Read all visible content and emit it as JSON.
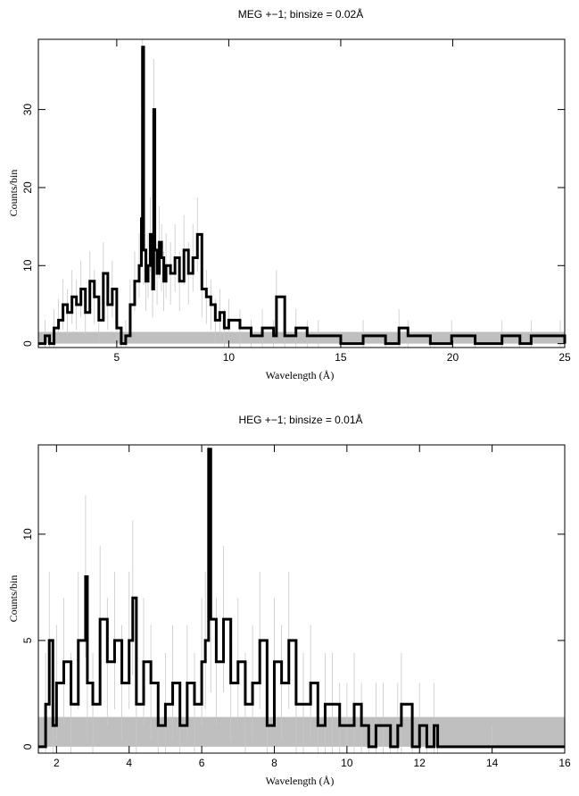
{
  "chart_data": [
    {
      "id": "meg",
      "type": "line",
      "title": "MEG +−1; binsize = 0.02Å",
      "xlabel": "Wavelength (Å)",
      "ylabel": "Counts/bin",
      "xlim": [
        1.5,
        25
      ],
      "ylim": [
        -0.5,
        39
      ],
      "x_ticks": [
        5,
        10,
        15,
        20,
        25
      ],
      "y_ticks": [
        0,
        10,
        20,
        30
      ],
      "x_tick_labels": [
        "5",
        "10",
        "15",
        "20",
        "25"
      ],
      "y_tick_labels": [
        "0",
        "10",
        "20",
        "30"
      ],
      "background_band": [
        0,
        1.5
      ],
      "series": [
        {
          "x": [
            1.5,
            1.8,
            2.0,
            2.2,
            2.4,
            2.6,
            2.8,
            3.0,
            3.2,
            3.4,
            3.6,
            3.8,
            4.0,
            4.2,
            4.4,
            4.6,
            4.8,
            5.0,
            5.2,
            5.4,
            5.6,
            5.8,
            6.0,
            6.1,
            6.15,
            6.2,
            6.3,
            6.4,
            6.5,
            6.6,
            6.65,
            6.7,
            6.8,
            6.9,
            7.0,
            7.1,
            7.2,
            7.4,
            7.6,
            7.8,
            8.0,
            8.2,
            8.4,
            8.6,
            8.8,
            9.0,
            9.2,
            9.4,
            9.6,
            9.8,
            10.0,
            10.5,
            11.0,
            11.5,
            12.0,
            12.13,
            12.5,
            13.0,
            13.5,
            14.0,
            15.0,
            16.0,
            17.0,
            17.6,
            18.0,
            19.0,
            19.95,
            21.0,
            22.2,
            23.0,
            23.5,
            24.8,
            25.0
          ],
          "y": [
            0,
            1,
            0,
            2,
            3,
            5,
            4,
            6,
            5,
            7,
            4,
            8,
            6,
            3,
            9,
            5,
            7,
            2,
            0,
            1,
            5,
            8,
            10,
            16,
            38,
            12,
            8,
            10,
            14,
            7,
            30,
            12,
            9,
            13,
            11,
            8,
            10,
            9,
            11,
            8,
            12,
            9,
            11,
            14,
            7,
            6,
            5,
            3,
            4,
            2,
            3,
            2,
            1,
            2,
            1,
            6,
            1,
            2,
            1,
            1,
            0,
            1,
            0,
            2,
            1,
            0,
            1,
            0,
            1,
            0,
            1,
            1,
            0
          ]
        }
      ]
    },
    {
      "id": "heg",
      "type": "line",
      "title": "HEG +−1; binsize = 0.01Å",
      "xlabel": "Wavelength (Å)",
      "ylabel": "Counts/bin",
      "xlim": [
        1.5,
        16
      ],
      "ylim": [
        -0.3,
        14.2
      ],
      "x_ticks": [
        2,
        4,
        6,
        8,
        10,
        12,
        14,
        16
      ],
      "y_ticks": [
        0,
        5,
        10
      ],
      "x_tick_labels": [
        "2",
        "4",
        "6",
        "8",
        "10",
        "12",
        "14",
        "16"
      ],
      "y_tick_labels": [
        "0",
        "5",
        "10"
      ],
      "background_band": [
        0,
        1.4
      ],
      "series": [
        {
          "x": [
            1.5,
            1.7,
            1.8,
            1.9,
            2.0,
            2.2,
            2.4,
            2.6,
            2.8,
            2.85,
            3.0,
            3.2,
            3.4,
            3.6,
            3.8,
            4.0,
            4.1,
            4.2,
            4.4,
            4.6,
            4.8,
            5.0,
            5.2,
            5.4,
            5.6,
            5.8,
            6.0,
            6.1,
            6.19,
            6.25,
            6.4,
            6.6,
            6.8,
            7.0,
            7.2,
            7.4,
            7.6,
            7.8,
            8.0,
            8.2,
            8.4,
            8.6,
            8.8,
            9.0,
            9.2,
            9.4,
            9.6,
            9.8,
            10.0,
            10.2,
            10.4,
            10.6,
            10.8,
            11.0,
            11.2,
            11.4,
            11.5,
            11.8,
            12.0,
            12.2,
            12.4,
            12.5,
            14.0,
            16.0
          ],
          "y": [
            0,
            2,
            5,
            1,
            3,
            4,
            2,
            5,
            8,
            3,
            2,
            6,
            4,
            5,
            3,
            5,
            7,
            2,
            4,
            3,
            1,
            2,
            3,
            1,
            3,
            2,
            4,
            5,
            14,
            6,
            4,
            6,
            3,
            4,
            2,
            3,
            5,
            1,
            4,
            3,
            5,
            2,
            2,
            3,
            1,
            2,
            2,
            1,
            1,
            2,
            1,
            0,
            1,
            1,
            0,
            1,
            2,
            0,
            1,
            0,
            1,
            0,
            0,
            0
          ]
        }
      ]
    }
  ]
}
